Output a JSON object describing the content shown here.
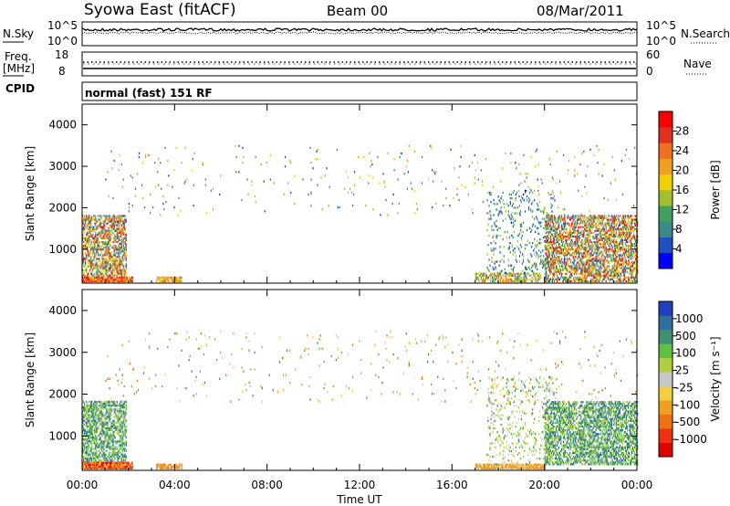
{
  "header": {
    "title": "Syowa East (fitACF)",
    "beam": "Beam 00",
    "date": "08/Mar/2011"
  },
  "top_panels": {
    "nsky_label": "N.Sky",
    "nsearch_label": "N.Search",
    "noise_ticks_left": [
      "10^5",
      "10^0"
    ],
    "noise_ticks_right": [
      "10^5",
      "10^0"
    ],
    "freq_label_1": "Freq.",
    "freq_label_2": "[MHz]",
    "freq_ticks": [
      "18",
      "8"
    ],
    "nave_label": "Nave",
    "nave_ticks": [
      "60",
      "0"
    ],
    "cpid_label": "CPID",
    "cpid_text": "normal (fast) 151 RF"
  },
  "colors": {
    "power_scale": [
      "#0000ff",
      "#2050c0",
      "#3a8a8a",
      "#40a060",
      "#a0c030",
      "#f0d000",
      "#f0a020",
      "#f07020",
      "#e03020",
      "#ff0000"
    ],
    "velocity_scale": [
      "#e00000",
      "#f03010",
      "#f07010",
      "#f0a020",
      "#f0d040",
      "#c8c8c8",
      "#b0d040",
      "#60c040",
      "#409070",
      "#3070a0",
      "#2040c0"
    ]
  },
  "chart_data": [
    {
      "type": "heatmap",
      "name": "power",
      "ylabel": "Slant Range [km]",
      "xlim": [
        0,
        24
      ],
      "ylim": [
        180,
        4500
      ],
      "yticks": [
        "1000",
        "2000",
        "3000",
        "4000"
      ],
      "colorbar_label": "Power [dB]",
      "colorbar_ticks": [
        "4",
        "8",
        "12",
        "16",
        "20",
        "24",
        "28"
      ],
      "colorbar_range": [
        0,
        32
      ],
      "scatter_regions": [
        {
          "t0": 0.0,
          "t1": 1.9,
          "r0": 200,
          "r1": 1800,
          "v0": 4,
          "v1": 30,
          "density": 0.55
        },
        {
          "t0": 0.0,
          "t1": 2.2,
          "r0": 200,
          "r1": 320,
          "v0": 18,
          "v1": 30,
          "density": 0.9
        },
        {
          "t0": 3.2,
          "t1": 4.3,
          "r0": 200,
          "r1": 320,
          "v0": 14,
          "v1": 26,
          "density": 0.7
        },
        {
          "t0": 17.0,
          "t1": 19.8,
          "r0": 200,
          "r1": 400,
          "v0": 6,
          "v1": 24,
          "density": 0.55
        },
        {
          "t0": 17.5,
          "t1": 20.5,
          "r0": 400,
          "r1": 2400,
          "v0": 3,
          "v1": 16,
          "density": 0.12
        },
        {
          "t0": 20.0,
          "t1": 24.0,
          "r0": 200,
          "r1": 1800,
          "v0": 4,
          "v1": 30,
          "density": 0.55
        },
        {
          "t0": 1.0,
          "t1": 24.0,
          "r0": 1800,
          "r1": 3500,
          "v0": 4,
          "v1": 22,
          "density": 0.015
        }
      ]
    },
    {
      "type": "heatmap",
      "name": "velocity",
      "ylabel": "Slant Range [km]",
      "xlabel": "Time UT",
      "xlim": [
        0,
        24
      ],
      "ylim": [
        180,
        4500
      ],
      "xticks": [
        "00:00",
        "04:00",
        "08:00",
        "12:00",
        "16:00",
        "20:00",
        "00:00"
      ],
      "yticks": [
        "1000",
        "2000",
        "3000",
        "4000"
      ],
      "colorbar_label": "Velocity [m s⁻¹]",
      "colorbar_ticks": [
        "-1000",
        "-500",
        "-100",
        "-25",
        "25",
        "100",
        "500",
        "1000"
      ],
      "scatter_regions": [
        {
          "t0": 0.0,
          "t1": 1.9,
          "r0": 350,
          "r1": 1800,
          "v0": 6,
          "v1": 10,
          "density": 0.55
        },
        {
          "t0": 0.0,
          "t1": 2.2,
          "r0": 200,
          "r1": 350,
          "v0": 0,
          "v1": 4,
          "density": 0.9
        },
        {
          "t0": 3.2,
          "t1": 4.3,
          "r0": 200,
          "r1": 330,
          "v0": 2,
          "v1": 4,
          "density": 0.7
        },
        {
          "t0": 17.0,
          "t1": 20.0,
          "r0": 200,
          "r1": 300,
          "v0": 3,
          "v1": 4,
          "density": 0.7
        },
        {
          "t0": 17.5,
          "t1": 20.5,
          "r0": 300,
          "r1": 2400,
          "v0": 4,
          "v1": 9,
          "density": 0.12
        },
        {
          "t0": 20.0,
          "t1": 24.0,
          "r0": 300,
          "r1": 1800,
          "v0": 6,
          "v1": 10,
          "density": 0.55
        },
        {
          "t0": 1.0,
          "t1": 24.0,
          "r0": 1800,
          "r1": 3500,
          "v0": 2,
          "v1": 9,
          "density": 0.015
        }
      ]
    }
  ]
}
